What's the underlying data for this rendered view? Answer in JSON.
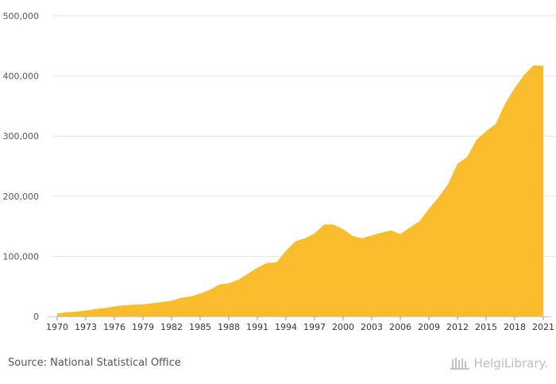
{
  "chart_data": {
    "type": "area",
    "color": "#f9bc2c",
    "grid": true,
    "ylim": [
      0,
      500000
    ],
    "yticks": [
      0,
      100000,
      200000,
      300000,
      400000,
      500000
    ],
    "ytick_labels": [
      "0",
      "100,000",
      "200,000",
      "300,000",
      "400,000",
      "500,000"
    ],
    "xticks": [
      1970,
      1973,
      1976,
      1979,
      1982,
      1985,
      1988,
      1991,
      1994,
      1997,
      2000,
      2003,
      2006,
      2009,
      2012,
      2015,
      2018,
      2021
    ],
    "xtick_labels": [
      "1970",
      "1973",
      "1976",
      "1979",
      "1982",
      "1985",
      "1988",
      "1991",
      "1994",
      "1997",
      "2000",
      "2003",
      "2006",
      "2009",
      "2012",
      "2015",
      "2018",
      "2021"
    ],
    "x": [
      1970,
      1971,
      1972,
      1973,
      1974,
      1975,
      1976,
      1977,
      1978,
      1979,
      1980,
      1981,
      1982,
      1983,
      1984,
      1985,
      1986,
      1987,
      1988,
      1989,
      1990,
      1991,
      1992,
      1993,
      1994,
      1995,
      1996,
      1997,
      1998,
      1999,
      2000,
      2001,
      2002,
      2003,
      2004,
      2005,
      2006,
      2007,
      2008,
      2009,
      2010,
      2011,
      2012,
      2013,
      2014,
      2015,
      2016,
      2017,
      2018,
      2019,
      2020,
      2021
    ],
    "values": [
      5000,
      7000,
      8000,
      10000,
      12000,
      14000,
      16500,
      18500,
      19500,
      20000,
      22000,
      24000,
      26000,
      31000,
      33000,
      38000,
      44000,
      53000,
      55000,
      61000,
      71000,
      81000,
      89000,
      90000,
      109000,
      125000,
      130000,
      138000,
      153000,
      153000,
      145000,
      134000,
      130000,
      135000,
      139000,
      143000,
      137000,
      148000,
      158000,
      179000,
      198000,
      220000,
      254000,
      265000,
      294000,
      308000,
      320000,
      354000,
      380000,
      402000,
      418000,
      417000
    ]
  },
  "footer": {
    "source": "Source: National Statistical Office",
    "brand": "HelgiLibrary."
  },
  "brand_icon": "helgilibrary-logo-icon"
}
